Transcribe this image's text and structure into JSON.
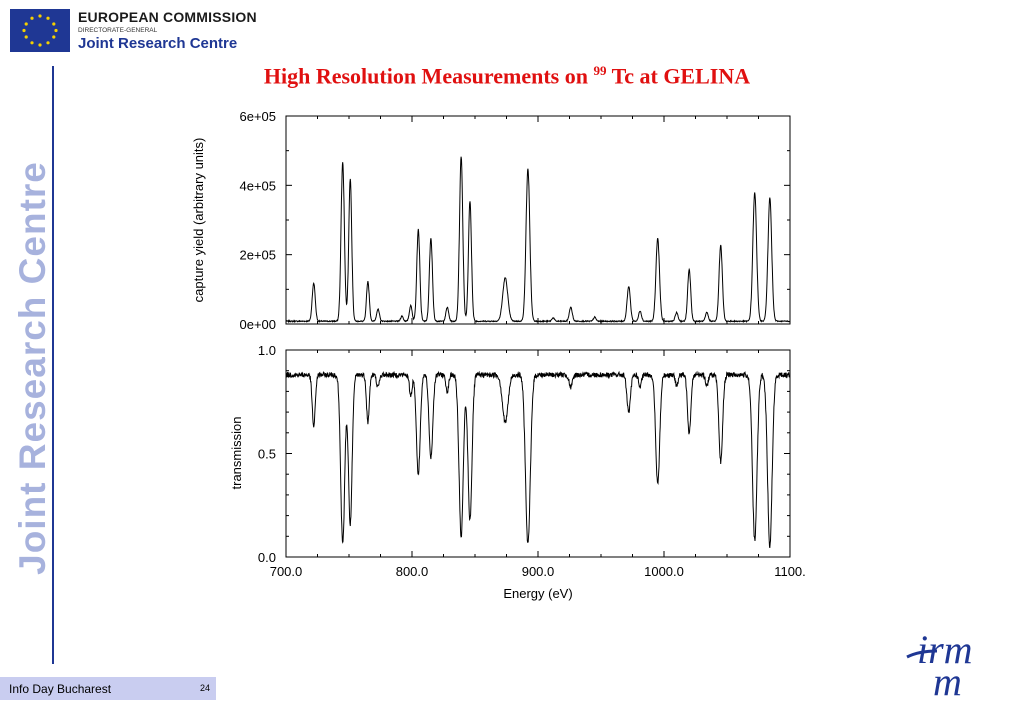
{
  "header": {
    "org": "EUROPEAN COMMISSION",
    "directorate": "DIRECTORATE-GENERAL",
    "centre": "Joint Research Centre"
  },
  "sidebar_text": "Joint Research Centre",
  "slide": {
    "title_prefix": "High Resolution Measurements on ",
    "title_sup": "99",
    "title_suffix": " Tc at GELINA"
  },
  "footer": {
    "text": "Info Day Bucharest",
    "page": "24"
  },
  "logo_irmm": {
    "line1": "irm",
    "line2": "m"
  },
  "colors": {
    "accent_blue": "#1f3794",
    "title_red": "#e01010",
    "sidebar_text": "#a7b2dd",
    "footer_bg": "#c9cdf0"
  },
  "chart_data": [
    {
      "type": "line",
      "ylabel": "capture yield (arbitrary units)",
      "xlim": [
        700,
        1100
      ],
      "ylim": [
        0,
        600000
      ],
      "yticks": [
        "0e+00",
        "2e+05",
        "4e+05",
        "6e+05"
      ],
      "ytick_values": [
        0,
        200000,
        400000,
        600000
      ],
      "baseline": 8000,
      "peaks": [
        {
          "x": 722,
          "y": 110000,
          "w": 1.2
        },
        {
          "x": 745,
          "y": 460000,
          "w": 1.3
        },
        {
          "x": 751,
          "y": 410000,
          "w": 1.2
        },
        {
          "x": 765,
          "y": 115000,
          "w": 1.1
        },
        {
          "x": 773,
          "y": 35000,
          "w": 1.1
        },
        {
          "x": 792,
          "y": 15000,
          "w": 1.0
        },
        {
          "x": 799,
          "y": 45000,
          "w": 1.1
        },
        {
          "x": 805,
          "y": 265000,
          "w": 1.2
        },
        {
          "x": 815,
          "y": 240000,
          "w": 1.2
        },
        {
          "x": 828,
          "y": 40000,
          "w": 1.1
        },
        {
          "x": 839,
          "y": 475000,
          "w": 1.3
        },
        {
          "x": 846,
          "y": 345000,
          "w": 1.2
        },
        {
          "x": 874,
          "y": 125000,
          "w": 2.0
        },
        {
          "x": 892,
          "y": 440000,
          "w": 1.5
        },
        {
          "x": 912,
          "y": 10000,
          "w": 1.0
        },
        {
          "x": 926,
          "y": 40000,
          "w": 1.2
        },
        {
          "x": 945,
          "y": 12000,
          "w": 1.0
        },
        {
          "x": 972,
          "y": 100000,
          "w": 1.3
        },
        {
          "x": 981,
          "y": 30000,
          "w": 1.1
        },
        {
          "x": 995,
          "y": 240000,
          "w": 1.4
        },
        {
          "x": 1010,
          "y": 25000,
          "w": 1.1
        },
        {
          "x": 1020,
          "y": 150000,
          "w": 1.2
        },
        {
          "x": 1034,
          "y": 25000,
          "w": 1.1
        },
        {
          "x": 1045,
          "y": 220000,
          "w": 1.3
        },
        {
          "x": 1072,
          "y": 370000,
          "w": 1.5
        },
        {
          "x": 1084,
          "y": 355000,
          "w": 1.5
        }
      ]
    },
    {
      "type": "line",
      "xlabel": "Energy (eV)",
      "ylabel": "transmission",
      "xlim": [
        700,
        1100
      ],
      "ylim": [
        0,
        1
      ],
      "yticks": [
        "0.0",
        "0.5",
        "1.0"
      ],
      "ytick_values": [
        0,
        0.5,
        1
      ],
      "xticks": [
        "700.0",
        "800.0",
        "900.0",
        "1000.0",
        "1100."
      ],
      "xtick_values": [
        700,
        800,
        900,
        1000,
        1100
      ],
      "baseline": 0.88,
      "dips": [
        {
          "x": 722,
          "d": 0.25,
          "w": 1.2
        },
        {
          "x": 745,
          "d": 0.82,
          "w": 1.6
        },
        {
          "x": 751,
          "d": 0.72,
          "w": 1.5
        },
        {
          "x": 765,
          "d": 0.23,
          "w": 1.1
        },
        {
          "x": 773,
          "d": 0.06,
          "w": 1.1
        },
        {
          "x": 799,
          "d": 0.1,
          "w": 1.1
        },
        {
          "x": 805,
          "d": 0.48,
          "w": 1.5
        },
        {
          "x": 815,
          "d": 0.4,
          "w": 1.5
        },
        {
          "x": 828,
          "d": 0.08,
          "w": 1.1
        },
        {
          "x": 839,
          "d": 0.78,
          "w": 1.7
        },
        {
          "x": 846,
          "d": 0.7,
          "w": 1.6
        },
        {
          "x": 874,
          "d": 0.23,
          "w": 2.2
        },
        {
          "x": 892,
          "d": 0.82,
          "w": 1.9
        },
        {
          "x": 926,
          "d": 0.06,
          "w": 1.3
        },
        {
          "x": 972,
          "d": 0.18,
          "w": 1.4
        },
        {
          "x": 981,
          "d": 0.06,
          "w": 1.1
        },
        {
          "x": 995,
          "d": 0.53,
          "w": 1.6
        },
        {
          "x": 1010,
          "d": 0.05,
          "w": 1.1
        },
        {
          "x": 1020,
          "d": 0.28,
          "w": 1.3
        },
        {
          "x": 1034,
          "d": 0.05,
          "w": 1.1
        },
        {
          "x": 1045,
          "d": 0.42,
          "w": 1.5
        },
        {
          "x": 1072,
          "d": 0.8,
          "w": 1.8
        },
        {
          "x": 1084,
          "d": 0.83,
          "w": 1.8
        }
      ]
    }
  ]
}
